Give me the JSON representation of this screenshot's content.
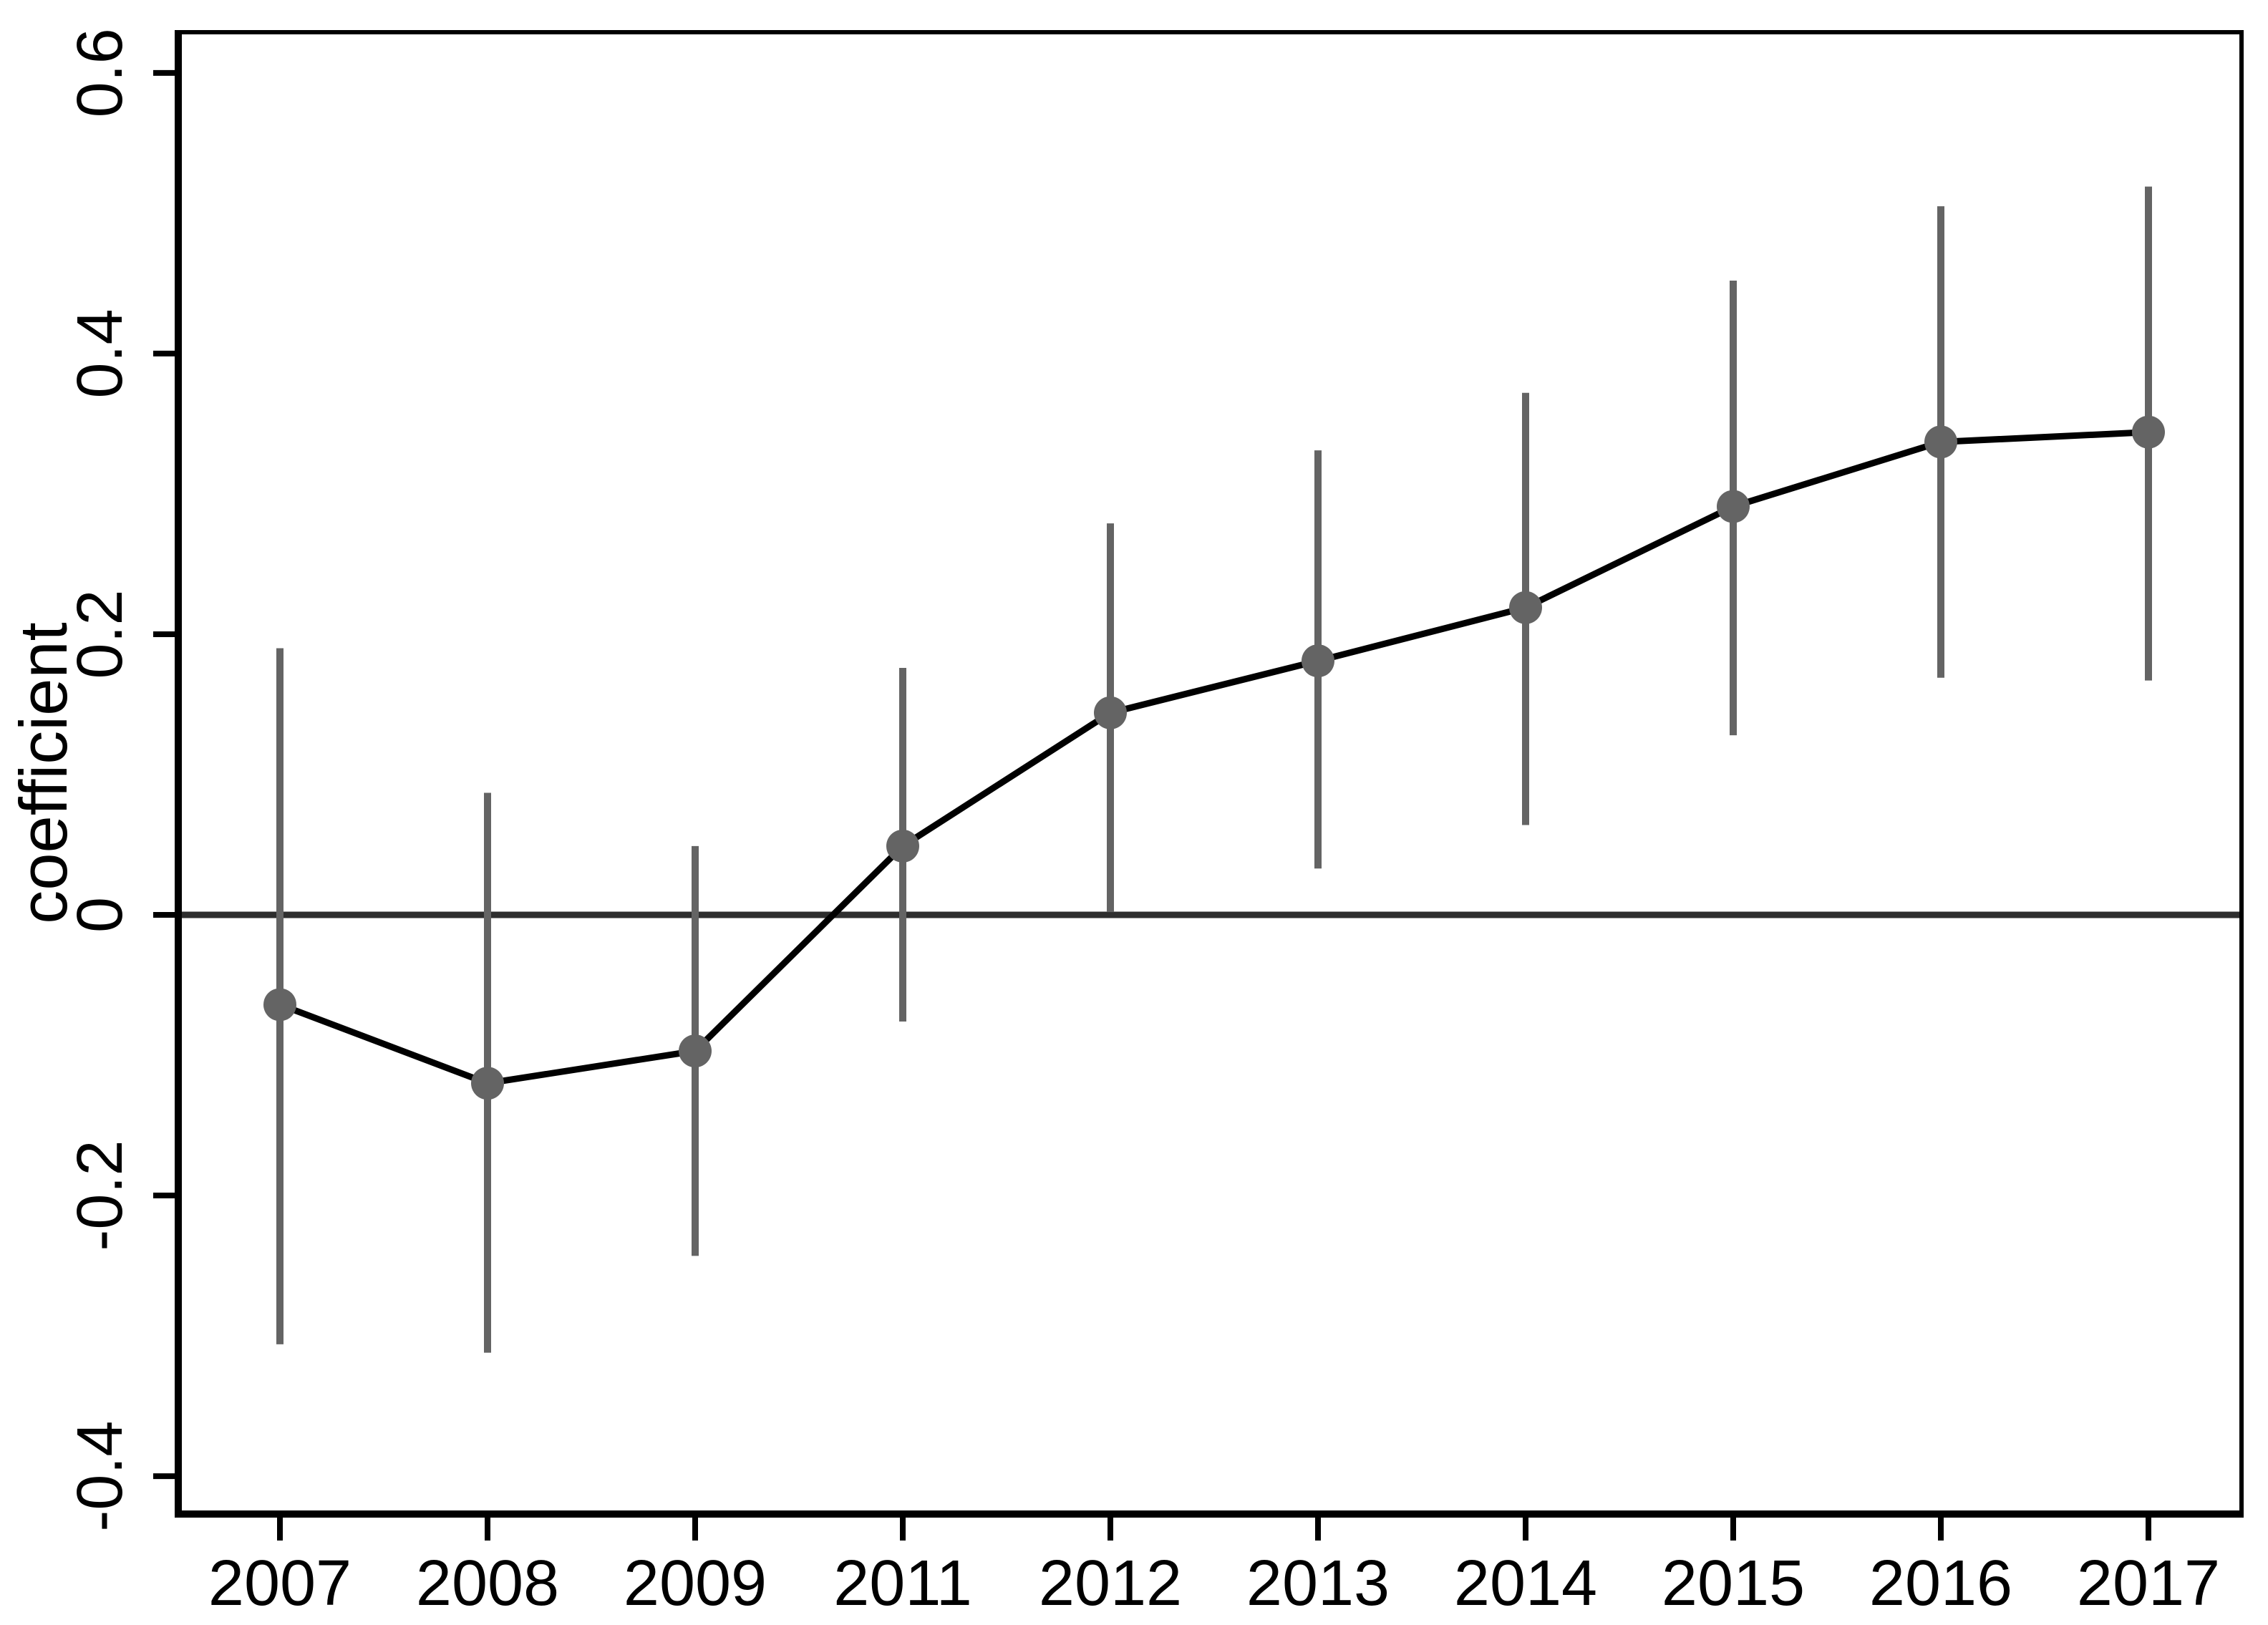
{
  "page": {
    "background": "#ffffff"
  },
  "chart_data": {
    "type": "line",
    "subtype": "coefficient-plot-with-error-bars",
    "title": "",
    "xlabel": "",
    "ylabel": "coefficient",
    "categories": [
      "2007",
      "2008",
      "2009",
      "2011",
      "2012",
      "2013",
      "2014",
      "2015",
      "2016",
      "2017"
    ],
    "series": [
      {
        "name": "coefficient",
        "values": [
          -0.064,
          -0.12,
          -0.097,
          0.049,
          0.144,
          0.181,
          0.219,
          0.291,
          0.337,
          0.344
        ],
        "ci_low": [
          -0.306,
          -0.312,
          -0.243,
          -0.076,
          0.002,
          0.033,
          0.064,
          0.128,
          0.169,
          0.167
        ],
        "ci_high": [
          0.19,
          0.087,
          0.049,
          0.176,
          0.279,
          0.331,
          0.372,
          0.452,
          0.505,
          0.519
        ]
      }
    ],
    "ylim": [
      -0.427,
      0.629
    ],
    "ytick_values": [
      0.6,
      0.4,
      0.2,
      0,
      -0.2,
      -0.4
    ],
    "ytick_labels": [
      "0.6",
      "0.4",
      "0.2",
      "0",
      "-0.2",
      "-0.4"
    ],
    "zero_line": true,
    "grid": false,
    "legend_position": "none",
    "marker": "circle",
    "colors": {
      "point": "#646464",
      "error_bar": "#646464",
      "line": "#000000",
      "zero_line": "#2e2e2e",
      "axis": "#000000",
      "text": "#000000",
      "background": "#ffffff"
    }
  }
}
